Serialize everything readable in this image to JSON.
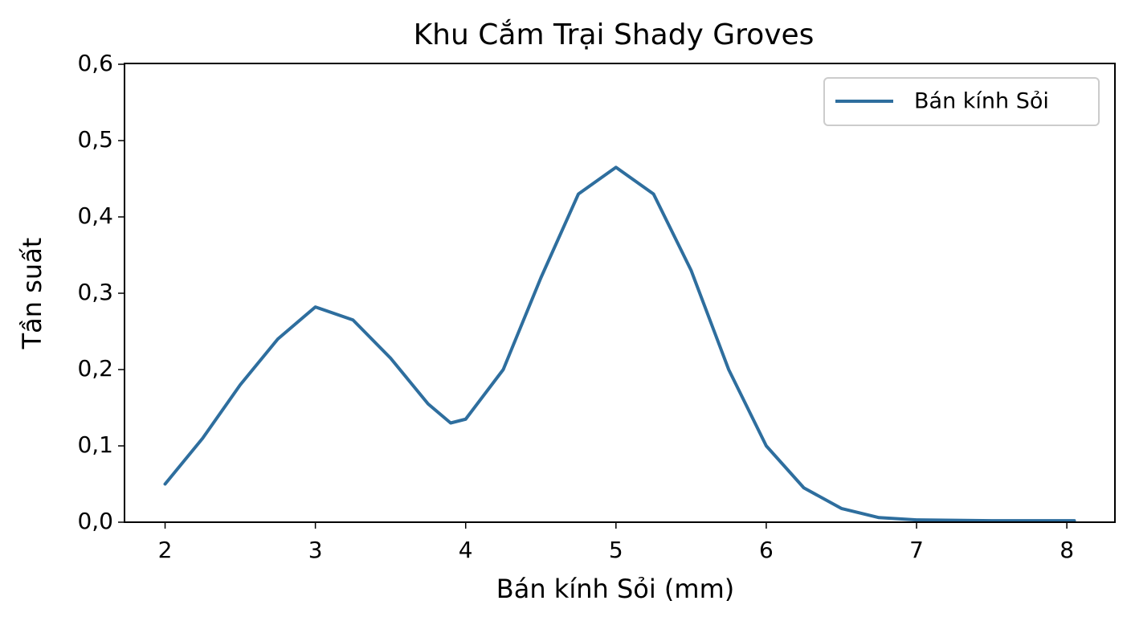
{
  "chart_data": {
    "type": "line",
    "title": "Khu Cắm Trại Shady Groves",
    "x_label": "Bán kính Sỏi (mm)",
    "y_label": "Tần suất",
    "x": [
      2.0,
      2.25,
      2.5,
      2.75,
      3.0,
      3.25,
      3.5,
      3.75,
      3.9,
      4.0,
      4.25,
      4.5,
      4.75,
      5.0,
      5.25,
      5.5,
      5.75,
      6.0,
      6.25,
      6.5,
      6.75,
      7.0,
      7.5,
      8.05
    ],
    "series": [
      {
        "name": "Bán kính Sỏi",
        "color": "#2e6e9e",
        "values": [
          0.05,
          0.11,
          0.18,
          0.24,
          0.282,
          0.265,
          0.215,
          0.155,
          0.13,
          0.135,
          0.2,
          0.32,
          0.43,
          0.465,
          0.43,
          0.33,
          0.2,
          0.1,
          0.045,
          0.018,
          0.006,
          0.003,
          0.002,
          0.002
        ]
      }
    ],
    "xlim": [
      1.73,
      8.32
    ],
    "ylim": [
      0,
      0.6
    ],
    "xticks": [
      2,
      3,
      4,
      5,
      6,
      7,
      8
    ],
    "yticks": [
      {
        "value": 0,
        "label": "0,0"
      },
      {
        "value": 0.1,
        "label": "0,1"
      },
      {
        "value": 0.2,
        "label": "0,2"
      },
      {
        "value": 0.3,
        "label": "0,3"
      },
      {
        "value": 0.4,
        "label": "0,4"
      },
      {
        "value": 0.5,
        "label": "0,5"
      },
      {
        "value": 0.6,
        "label": "0,6"
      }
    ],
    "legend": "upper right"
  }
}
